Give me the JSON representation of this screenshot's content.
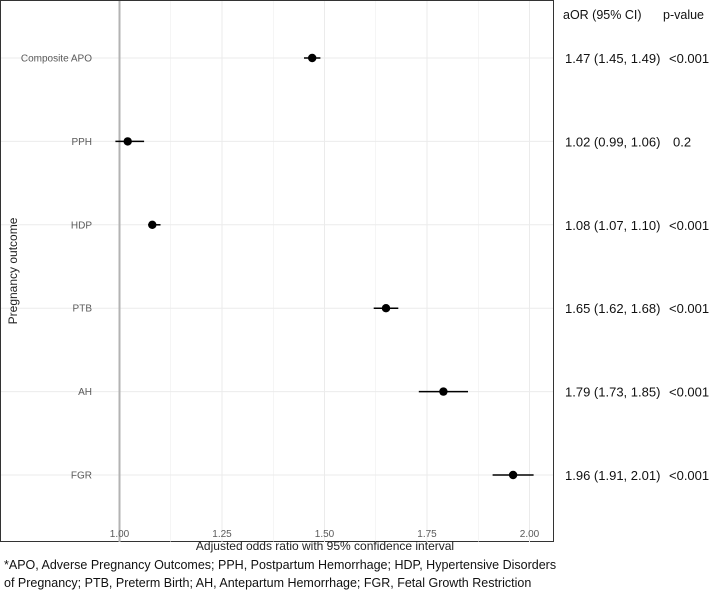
{
  "chart_data": {
    "type": "forest",
    "ylabel": "Pregnancy outcome",
    "xlabel": "Adjusted odds ratio with 95% confidence interval",
    "xlim": [
      0.98,
      2.05
    ],
    "xticks": [
      "1.00",
      "1.25",
      "1.50",
      "1.75",
      "2.00"
    ],
    "reference_line": 1.0,
    "grid": true,
    "columns": {
      "estimate": "aOR (95% CI)",
      "pvalue": "p-value"
    },
    "rows": [
      {
        "label": "Composite APO",
        "or": 1.47,
        "lo": 1.45,
        "hi": 1.49,
        "ci_text": "1.47 (1.45, 1.49)",
        "p": "<0.001"
      },
      {
        "label": "PPH",
        "or": 1.02,
        "lo": 0.99,
        "hi": 1.06,
        "ci_text": "1.02 (0.99, 1.06)",
        "p": "0.2"
      },
      {
        "label": "HDP",
        "or": 1.08,
        "lo": 1.07,
        "hi": 1.1,
        "ci_text": "1.08 (1.07, 1.10)",
        "p": "<0.001"
      },
      {
        "label": "PTB",
        "or": 1.65,
        "lo": 1.62,
        "hi": 1.68,
        "ci_text": "1.65 (1.62, 1.68)",
        "p": "<0.001"
      },
      {
        "label": "AH",
        "or": 1.79,
        "lo": 1.73,
        "hi": 1.85,
        "ci_text": "1.79 (1.73, 1.85)",
        "p": "<0.001"
      },
      {
        "label": "FGR",
        "or": 1.96,
        "lo": 1.91,
        "hi": 2.01,
        "ci_text": "1.96 (1.91, 2.01)",
        "p": "<0.001"
      }
    ]
  },
  "footnote": {
    "line1": "*APO, Adverse Pregnancy Outcomes; PPH, Postpartum Hemorrhage; HDP, Hypertensive Disorders",
    "line2": "of Pregnancy; PTB, Preterm Birth; AH, Antepartum Hemorrhage; FGR, Fetal Growth Restriction"
  },
  "colors": {
    "reference_line": "#b3b3b3",
    "grid": "#ebebeb",
    "point": "#000000"
  }
}
